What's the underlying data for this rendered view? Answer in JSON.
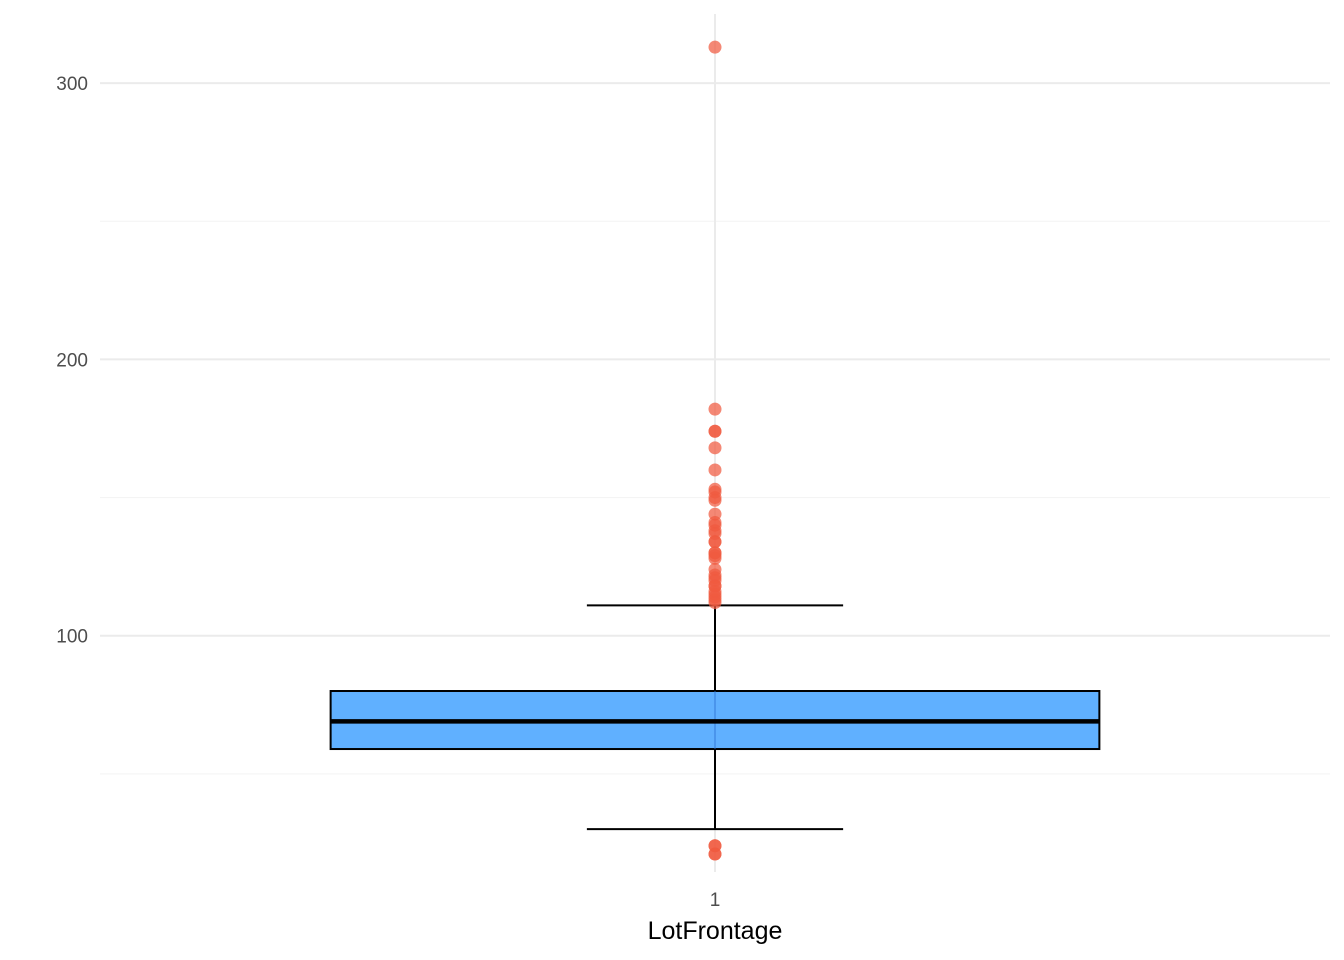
{
  "chart_data": {
    "type": "boxplot",
    "title": "",
    "xlabel": "LotFrontage",
    "ylabel": "",
    "x_categories": [
      "1"
    ],
    "x_range": [
      0.4,
      1.6
    ],
    "ylim": [
      14.5,
      325
    ],
    "y_ticks": [
      100,
      200,
      300
    ],
    "y_minor_ticks": [
      50,
      150,
      250
    ],
    "grid": true,
    "legend": "none",
    "box": {
      "category": "1",
      "min": 30,
      "q1": 59,
      "median": 69,
      "q3": 80,
      "max": 111
    },
    "outliers": [
      313,
      182,
      174,
      174,
      168,
      160,
      153,
      152,
      150,
      149,
      144,
      141,
      140,
      138,
      137,
      134,
      134,
      130,
      130,
      129,
      128,
      124,
      122,
      121,
      120,
      118,
      118,
      116,
      115,
      114,
      113,
      112,
      24,
      24,
      21,
      21
    ],
    "colors": {
      "box_fill": "#60b0ff",
      "box_outline": "#000000",
      "outlier": "#f05a40",
      "grid": "#ebebeb"
    }
  }
}
